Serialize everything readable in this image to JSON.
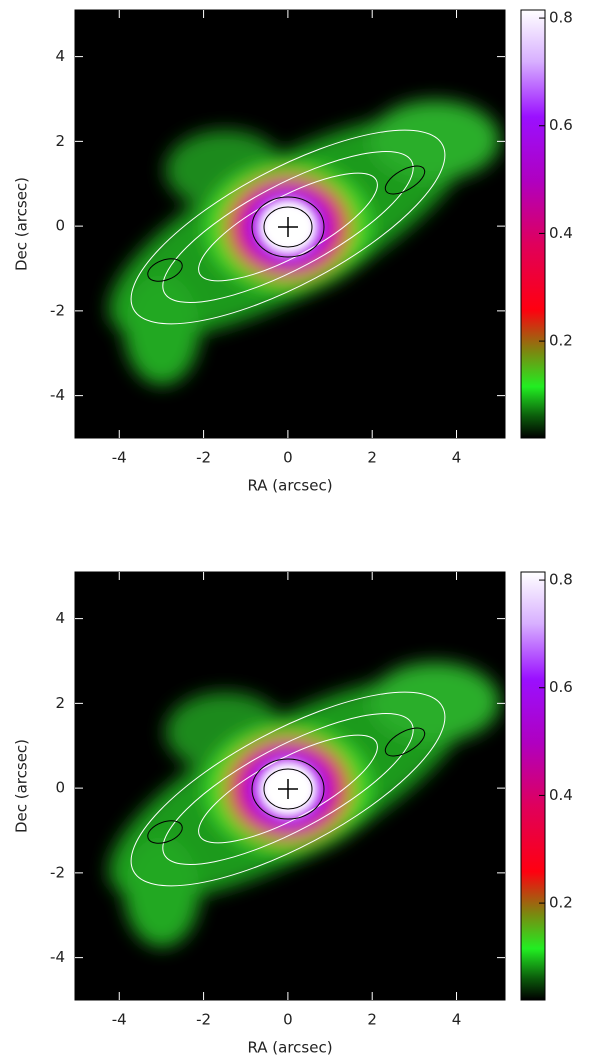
{
  "chart_data": [
    {
      "type": "image",
      "xlabel": "RA (arcsec)",
      "ylabel": "Dec (arcsec)",
      "xlim": [
        -5.05,
        5.15
      ],
      "ylim": [
        -5.0,
        5.1
      ],
      "xticks": [
        -4,
        -2,
        0,
        2,
        4
      ],
      "yticks": [
        -4,
        -2,
        0,
        2,
        4
      ],
      "colorbar": {
        "lim": [
          0.02,
          0.815
        ],
        "ticks": [
          0.2,
          0.4,
          0.6,
          0.8
        ]
      }
    },
    {
      "type": "image",
      "xlabel": "RA (arcsec)",
      "ylabel": "Dec (arcsec)",
      "xlim": [
        -5.05,
        5.15
      ],
      "ylim": [
        -5.0,
        5.1
      ],
      "xticks": [
        -4,
        -2,
        0,
        2,
        4
      ],
      "yticks": [
        -4,
        -2,
        0,
        2,
        4
      ],
      "colorbar": {
        "lim": [
          0.02,
          0.815
        ],
        "ticks": [
          0.2,
          0.4,
          0.6,
          0.8
        ]
      }
    }
  ]
}
